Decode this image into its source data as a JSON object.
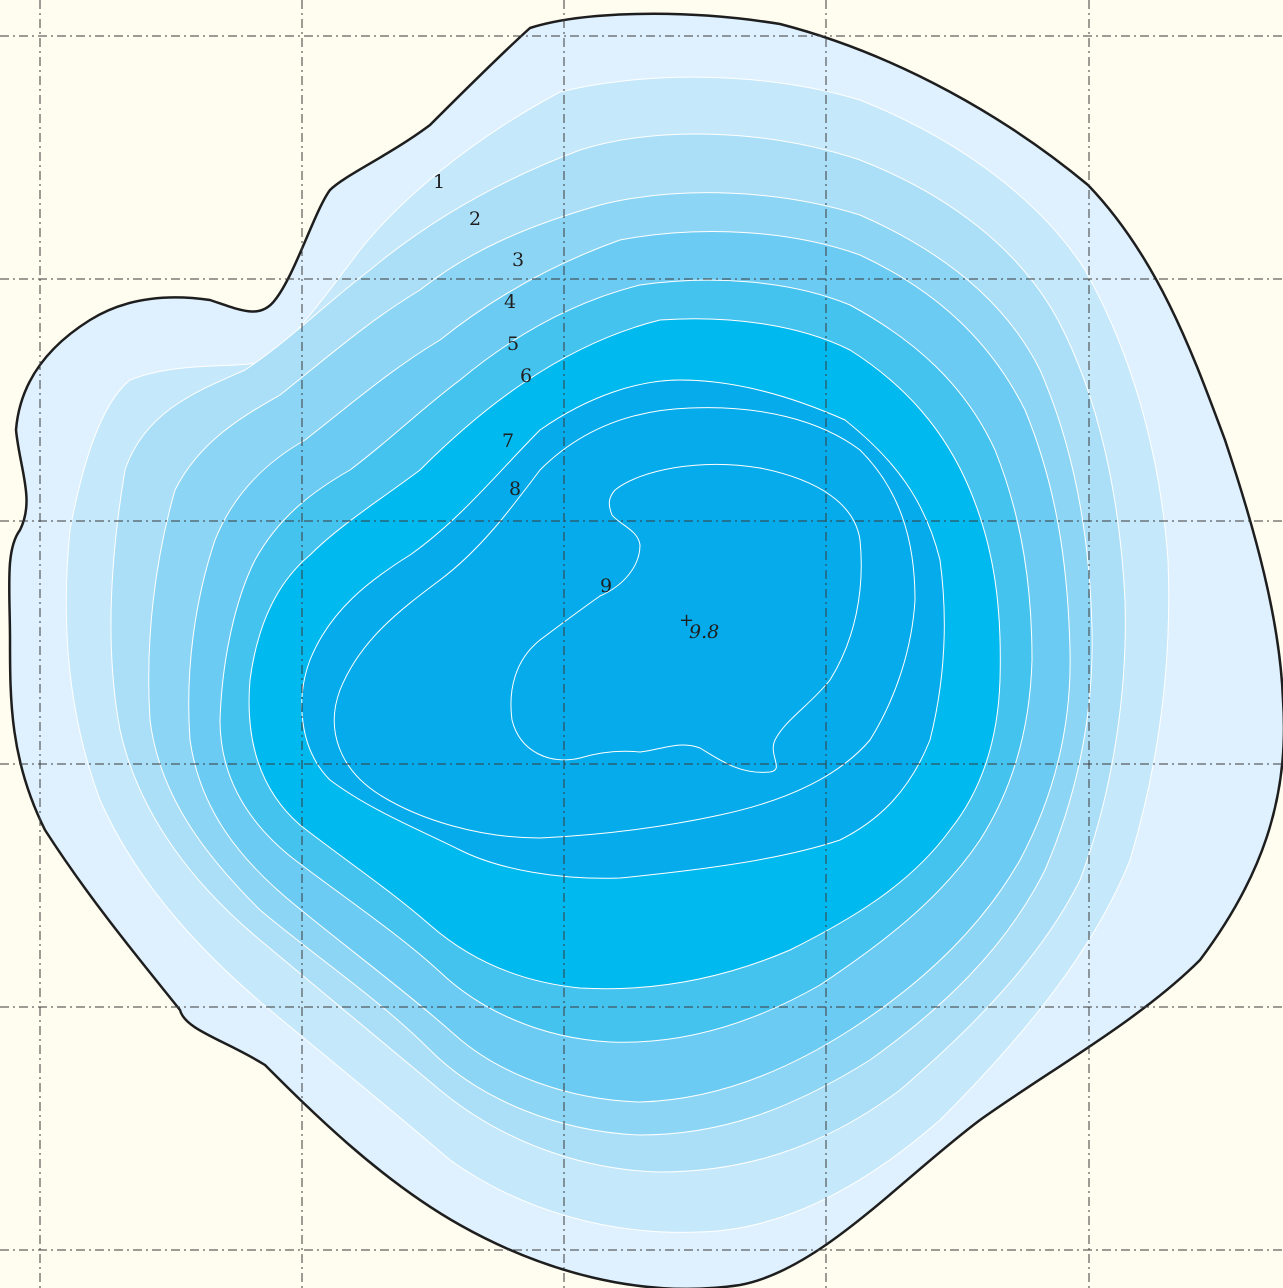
{
  "map": {
    "type": "bathymetric lake map",
    "depth_labels": [
      "1",
      "2",
      "3",
      "4",
      "5",
      "6",
      "7",
      "8",
      "9"
    ],
    "max_depth_label": "9.8",
    "deepest_point_marker": "+",
    "colors": {
      "background": "#fffdf0",
      "shoreline": "#1e1e1e",
      "grid": "#3a3a3a",
      "contour_lines": "#ffffff",
      "depth_fills": [
        "#dff1fe",
        "#c6e8fb",
        "#abdff8",
        "#8dd5f5",
        "#6ccbf3",
        "#44c3ef",
        "#00b9ef",
        "#05abea"
      ]
    }
  }
}
